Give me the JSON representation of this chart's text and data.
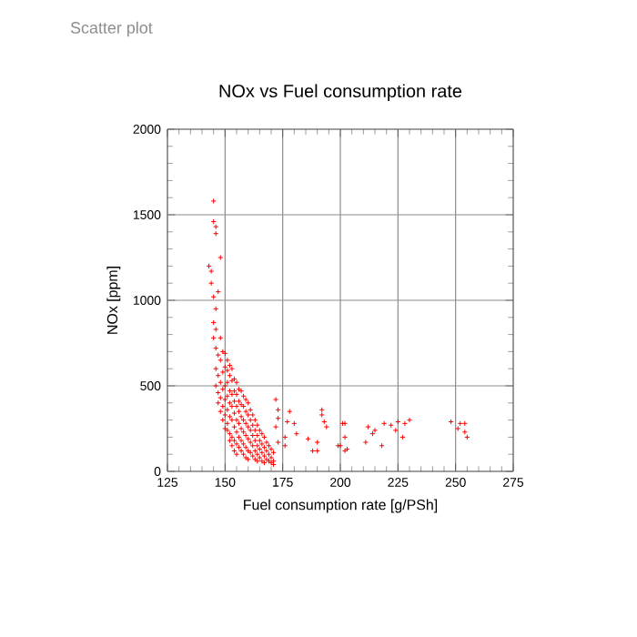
{
  "chart_data": {
    "type": "scatter",
    "title": "NOx vs Fuel consumption rate",
    "xlabel": "Fuel consumption rate [g/PSh]",
    "ylabel": "NOx [ppm]",
    "annotations": [
      "Scatter plot"
    ],
    "xlim": [
      125,
      275
    ],
    "xticks": [
      125,
      150,
      175,
      200,
      225,
      250,
      275
    ],
    "ylim": [
      0,
      2000
    ],
    "yticks": [
      0,
      500,
      1000,
      1500,
      2000
    ],
    "grid": true,
    "marker": "cross",
    "series": [
      {
        "color": "#ff0000",
        "x": [
          145,
          145,
          146,
          146,
          148,
          143,
          144,
          144,
          147,
          145,
          146,
          145,
          146,
          145,
          148,
          146,
          146,
          146,
          147,
          147,
          147,
          147,
          148,
          148,
          148,
          148,
          149,
          149,
          149,
          149,
          149,
          150,
          150,
          150,
          150,
          150,
          150,
          151,
          151,
          151,
          151,
          151,
          151,
          151,
          152,
          152,
          152,
          152,
          152,
          152,
          152,
          153,
          153,
          153,
          153,
          153,
          153,
          153,
          154,
          154,
          154,
          154,
          154,
          154,
          154,
          155,
          155,
          155,
          155,
          155,
          155,
          155,
          156,
          156,
          156,
          156,
          156,
          156,
          157,
          157,
          157,
          157,
          157,
          157,
          158,
          158,
          158,
          158,
          158,
          158,
          159,
          159,
          159,
          159,
          159,
          159,
          160,
          160,
          160,
          160,
          160,
          160,
          161,
          161,
          161,
          161,
          161,
          162,
          162,
          162,
          162,
          162,
          163,
          163,
          163,
          163,
          163,
          164,
          164,
          164,
          164,
          164,
          165,
          165,
          165,
          165,
          166,
          166,
          166,
          166,
          167,
          167,
          167,
          167,
          168,
          168,
          168,
          169,
          169,
          169,
          170,
          170,
          170,
          171,
          171,
          171,
          172,
          173,
          173,
          172,
          176,
          173,
          178,
          177,
          180,
          181,
          176,
          186,
          188,
          190,
          192,
          192,
          193,
          194,
          190,
          202,
          200,
          202,
          203,
          201,
          199,
          202,
          212,
          214,
          211,
          218,
          219,
          222,
          225,
          228,
          230,
          227,
          224,
          215,
          248,
          252,
          254,
          251,
          254,
          255
        ],
        "values": [
          1580,
          1460,
          1430,
          1390,
          1250,
          1200,
          1170,
          1100,
          1050,
          1020,
          950,
          870,
          830,
          780,
          780,
          720,
          600,
          500,
          680,
          560,
          460,
          400,
          650,
          520,
          430,
          350,
          700,
          580,
          480,
          380,
          300,
          690,
          610,
          500,
          420,
          330,
          250,
          650,
          590,
          520,
          440,
          360,
          280,
          240,
          620,
          560,
          470,
          400,
          320,
          220,
          180,
          600,
          530,
          450,
          380,
          300,
          200,
          150,
          540,
          470,
          410,
          340,
          260,
          180,
          120,
          520,
          450,
          380,
          300,
          230,
          160,
          100,
          480,
          410,
          350,
          280,
          200,
          140,
          470,
          390,
          320,
          250,
          180,
          120,
          440,
          380,
          300,
          230,
          160,
          100,
          420,
          350,
          280,
          210,
          140,
          80,
          400,
          330,
          260,
          190,
          120,
          70,
          360,
          300,
          240,
          170,
          110,
          330,
          270,
          210,
          150,
          90,
          300,
          240,
          180,
          120,
          70,
          270,
          210,
          150,
          100,
          60,
          240,
          180,
          130,
          80,
          220,
          160,
          110,
          60,
          200,
          140,
          90,
          50,
          170,
          120,
          70,
          150,
          100,
          60,
          130,
          80,
          50,
          110,
          60,
          40,
          420,
          360,
          310,
          260,
          200,
          170,
          350,
          290,
          280,
          220,
          150,
          190,
          120,
          120,
          360,
          330,
          290,
          260,
          170,
          280,
          150,
          200,
          130,
          280,
          150,
          120,
          260,
          220,
          170,
          150,
          280,
          270,
          290,
          280,
          300,
          200,
          240,
          240,
          290,
          280,
          280,
          250,
          230,
          200
        ]
      }
    ]
  }
}
